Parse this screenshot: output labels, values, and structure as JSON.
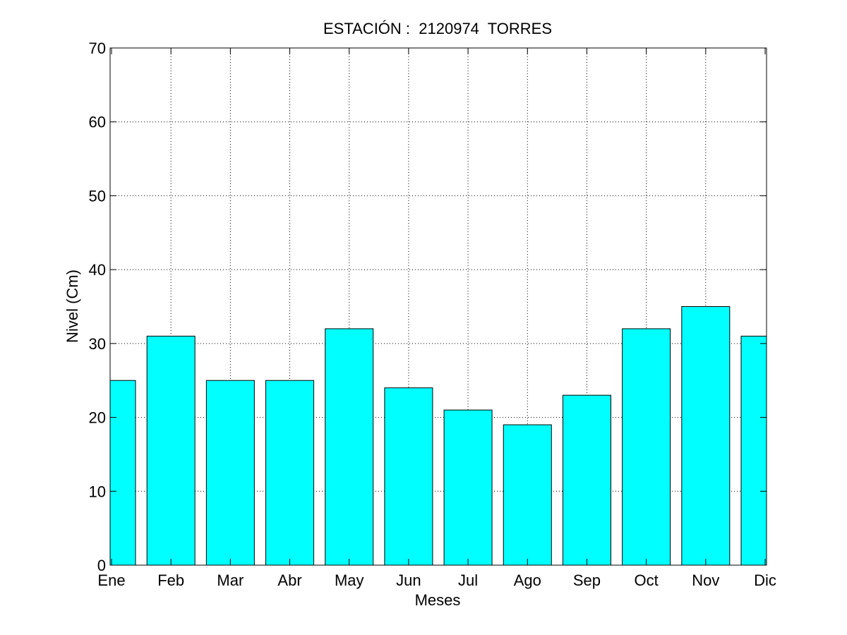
{
  "chart_data": {
    "type": "bar",
    "title": "ESTACIÓN :  2120974  TORRES",
    "xlabel": "Meses",
    "ylabel": "Nivel (Cm)",
    "categories": [
      "Ene",
      "Feb",
      "Mar",
      "Abr",
      "May",
      "Jun",
      "Jul",
      "Ago",
      "Sep",
      "Oct",
      "Nov",
      "Dic"
    ],
    "values": [
      25,
      31,
      25,
      25,
      32,
      24,
      21,
      19,
      23,
      32,
      35,
      31
    ],
    "ylim": [
      0,
      70
    ],
    "yticks": [
      0,
      10,
      20,
      30,
      40,
      50,
      60,
      70
    ],
    "grid": true,
    "bar_color": "#00FFFF",
    "edge_color": "#000000"
  }
}
